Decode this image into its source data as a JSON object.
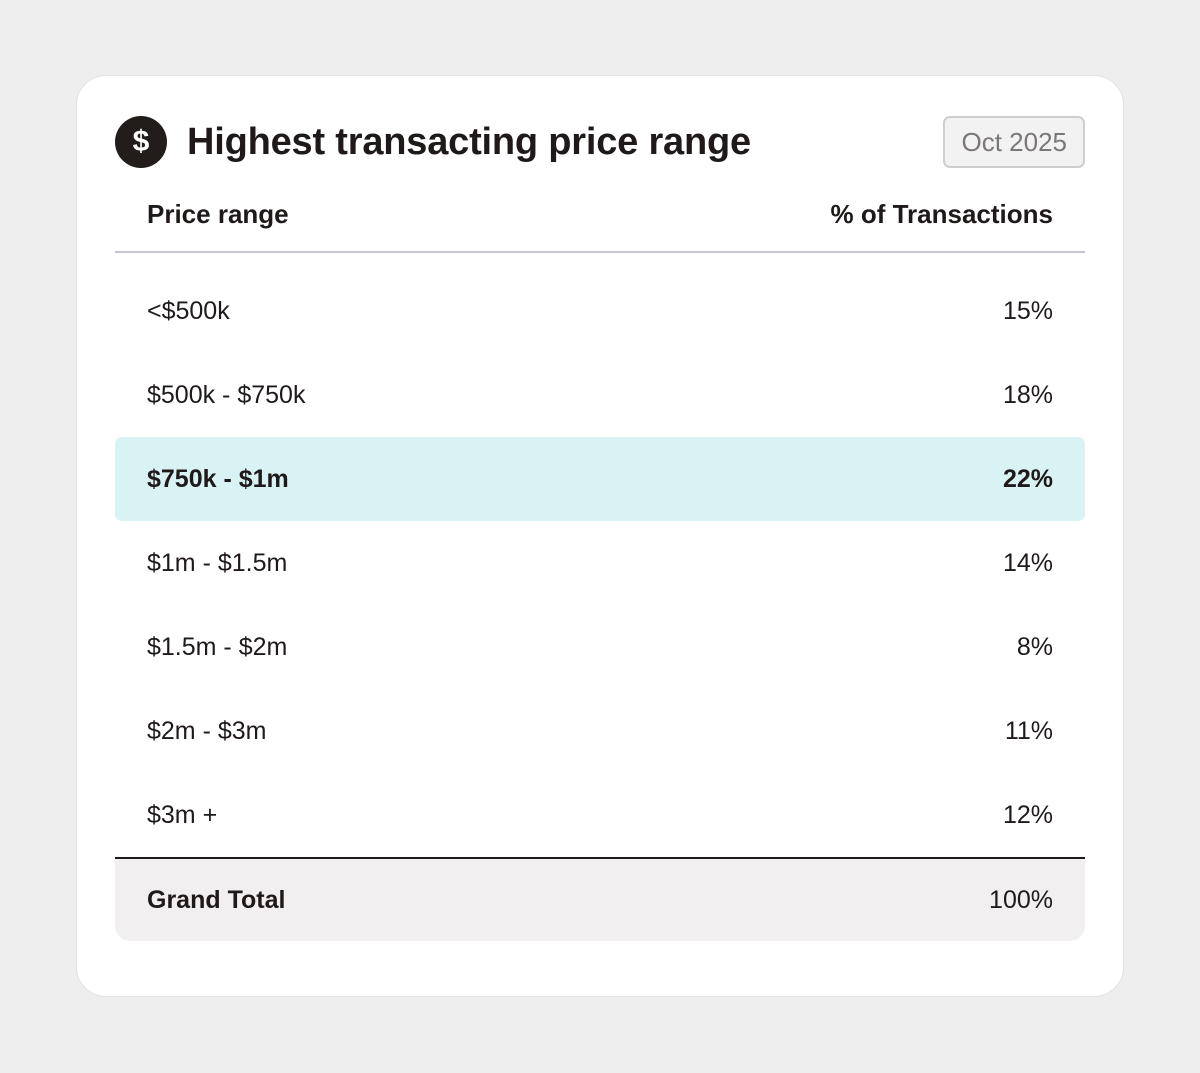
{
  "header": {
    "icon": "dollar-icon",
    "icon_glyph": "$",
    "title": "Highest transacting price range",
    "date_badge": "Oct 2025"
  },
  "table": {
    "columns": [
      "Price range",
      "% of Transactions"
    ],
    "rows": [
      {
        "range": "<$500k",
        "percent": "15%",
        "highlighted": false
      },
      {
        "range": "$500k - $750k",
        "percent": "18%",
        "highlighted": false
      },
      {
        "range": "$750k - $1m",
        "percent": "22%",
        "highlighted": true
      },
      {
        "range": "$1m - $1.5m",
        "percent": "14%",
        "highlighted": false
      },
      {
        "range": "$1.5m - $2m",
        "percent": "8%",
        "highlighted": false
      },
      {
        "range": "$2m - $3m",
        "percent": "11%",
        "highlighted": false
      },
      {
        "range": "$3m +",
        "percent": "12%",
        "highlighted": false
      }
    ],
    "total": {
      "label": "Grand Total",
      "percent": "100%"
    }
  },
  "colors": {
    "background": "#efeeee",
    "card": "#ffffff",
    "highlight_row": "#d9f2f3",
    "total_row": "#f1efef",
    "text": "#1f1a19",
    "icon_bg": "#221c1b"
  }
}
